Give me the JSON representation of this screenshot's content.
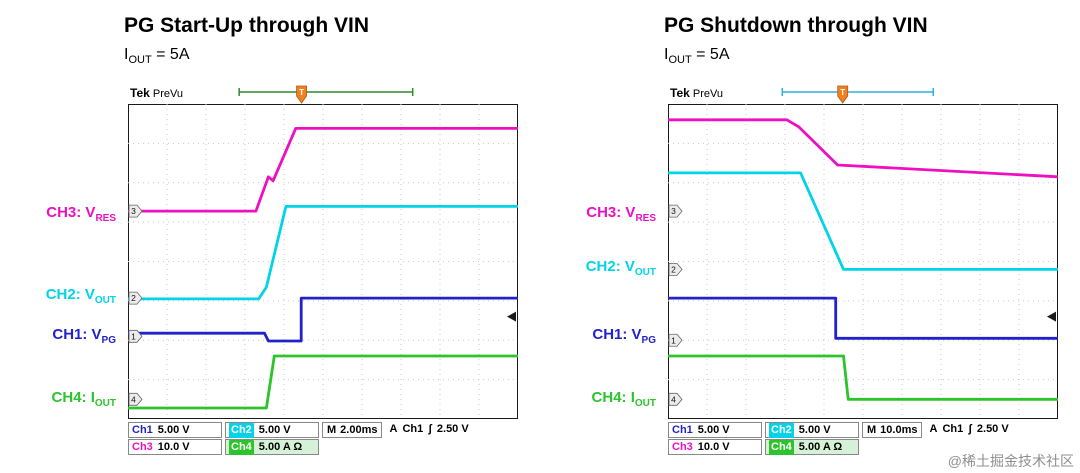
{
  "page": {
    "watermark": "@稀土掘金技术社区"
  },
  "colors": {
    "ch1": "#2222cc",
    "ch2": "#00d4e6",
    "ch3": "#ee10c0",
    "ch4": "#2cc42c",
    "trigger": "#f08020",
    "bracket_green": "#2e8b2e",
    "bracket_cyan": "#28b4dc"
  },
  "panels": [
    {
      "title": "PG Start-Up through VIN",
      "subtitle": {
        "base": "I",
        "sub": "OUT",
        "rest": " = 5A"
      },
      "header": {
        "brand": "Tek",
        "mode": "PreVu"
      },
      "channel_labels": [
        {
          "prefix": "CH3: V",
          "sub": "RES",
          "color_key": "ch3"
        },
        {
          "prefix": "CH2: V",
          "sub": "OUT",
          "color_key": "ch2"
        },
        {
          "prefix": "CH1: V",
          "sub": "PG",
          "color_key": "ch1"
        },
        {
          "prefix": "CH4: I",
          "sub": "OUT",
          "color_key": "ch4"
        }
      ],
      "readout": {
        "ch1_label": "Ch1",
        "ch1_value": "5.00 V",
        "ch2_label": "Ch2",
        "ch2_value": "5.00 V",
        "time_label": "M",
        "time_value": "2.00ms",
        "trig_mode": "A",
        "trig_source": "Ch1",
        "trig_slope": "ʃ",
        "trig_level": "2.50 V",
        "ch3_label": "Ch3",
        "ch3_value": "10.0 V",
        "ch4_label": "Ch4",
        "ch4_value": "5.00 A Ω"
      }
    },
    {
      "title": "PG Shutdown through VIN",
      "subtitle": {
        "base": "I",
        "sub": "OUT",
        "rest": " = 5A"
      },
      "header": {
        "brand": "Tek",
        "mode": "PreVu"
      },
      "channel_labels": [
        {
          "prefix": "CH3: V",
          "sub": "RES",
          "color_key": "ch3"
        },
        {
          "prefix": "CH2: V",
          "sub": "OUT",
          "color_key": "ch2"
        },
        {
          "prefix": "CH1: V",
          "sub": "PG",
          "color_key": "ch1"
        },
        {
          "prefix": "CH4: I",
          "sub": "OUT",
          "color_key": "ch4"
        }
      ],
      "readout": {
        "ch1_label": "Ch1",
        "ch1_value": "5.00 V",
        "ch2_label": "Ch2",
        "ch2_value": "5.00 V",
        "time_label": "M",
        "time_value": "10.0ms",
        "trig_mode": "A",
        "trig_source": "Ch1",
        "trig_slope": "ʃ",
        "trig_level": "2.50 V",
        "ch3_label": "Ch3",
        "ch3_value": "10.0 V",
        "ch4_label": "Ch4",
        "ch4_value": "5.00 A Ω"
      }
    }
  ],
  "chart_data": [
    {
      "type": "line",
      "title": "PG Start-Up through VIN",
      "x_axis": {
        "label": "time",
        "per_division": "2.00 ms",
        "divisions": 10
      },
      "y_axis": {
        "divisions": 8,
        "units": "graticule divisions from bottom"
      },
      "trigger_x": 4.45,
      "trigger_level_y": 2.6,
      "bracket": {
        "range": [
          2.85,
          7.3
        ],
        "color_key": "bracket_green"
      },
      "series": [
        {
          "name": "CH3: VRES",
          "scale": "10.0 V/div",
          "color_key": "ch3",
          "points": [
            [
              0,
              5.28
            ],
            [
              3.28,
              5.28
            ],
            [
              3.6,
              6.15
            ],
            [
              3.72,
              6.05
            ],
            [
              4.3,
              7.38
            ],
            [
              10,
              7.38
            ]
          ]
        },
        {
          "name": "CH2: VOUT",
          "scale": "5.00 V/div",
          "color_key": "ch2",
          "points": [
            [
              0,
              3.05
            ],
            [
              3.35,
              3.05
            ],
            [
              3.55,
              3.35
            ],
            [
              4.05,
              5.4
            ],
            [
              10,
              5.4
            ]
          ]
        },
        {
          "name": "CH1: VPG",
          "scale": "5.00 V/div",
          "color_key": "ch1",
          "points": [
            [
              0,
              2.18
            ],
            [
              3.5,
              2.18
            ],
            [
              3.6,
              1.98
            ],
            [
              4.44,
              1.98
            ],
            [
              4.44,
              3.07
            ],
            [
              10,
              3.07
            ]
          ]
        },
        {
          "name": "CH4: IOUT",
          "scale": "5.00 A/div",
          "color_key": "ch4",
          "points": [
            [
              0,
              0.28
            ],
            [
              3.55,
              0.28
            ],
            [
              3.75,
              1.6
            ],
            [
              10,
              1.6
            ]
          ]
        }
      ],
      "markers": [
        {
          "ch": "3",
          "y": 5.28
        },
        {
          "ch": "2",
          "y": 3.07
        },
        {
          "ch": "1",
          "y": 2.1
        },
        {
          "ch": "4",
          "y": 0.5
        }
      ]
    },
    {
      "type": "line",
      "title": "PG Shutdown through VIN",
      "x_axis": {
        "label": "time",
        "per_division": "10.0 ms",
        "divisions": 10
      },
      "y_axis": {
        "divisions": 8,
        "units": "graticule divisions from bottom"
      },
      "trigger_x": 4.48,
      "trigger_level_y": 2.6,
      "bracket": {
        "range": [
          2.93,
          6.8
        ],
        "color_key": "bracket_cyan"
      },
      "series": [
        {
          "name": "CH3: VRES",
          "scale": "10.0 V/div",
          "color_key": "ch3",
          "points": [
            [
              0,
              7.6
            ],
            [
              3.05,
              7.6
            ],
            [
              3.35,
              7.42
            ],
            [
              4.35,
              6.45
            ],
            [
              10,
              6.15
            ]
          ]
        },
        {
          "name": "CH2: VOUT",
          "scale": "5.00 V/div",
          "color_key": "ch2",
          "points": [
            [
              0,
              6.25
            ],
            [
              3.4,
              6.25
            ],
            [
              4.5,
              3.8
            ],
            [
              10,
              3.8
            ]
          ]
        },
        {
          "name": "CH1: VPG",
          "scale": "5.00 V/div",
          "color_key": "ch1",
          "points": [
            [
              0,
              3.07
            ],
            [
              4.3,
              3.07
            ],
            [
              4.3,
              2.05
            ],
            [
              10,
              2.05
            ]
          ]
        },
        {
          "name": "CH4: IOUT",
          "scale": "5.00 A/div",
          "color_key": "ch4",
          "points": [
            [
              0,
              1.6
            ],
            [
              4.5,
              1.6
            ],
            [
              4.62,
              0.5
            ],
            [
              10,
              0.5
            ]
          ]
        }
      ],
      "markers": [
        {
          "ch": "3",
          "y": 5.28
        },
        {
          "ch": "2",
          "y": 3.8
        },
        {
          "ch": "1",
          "y": 2.0
        },
        {
          "ch": "4",
          "y": 0.5
        }
      ]
    }
  ]
}
